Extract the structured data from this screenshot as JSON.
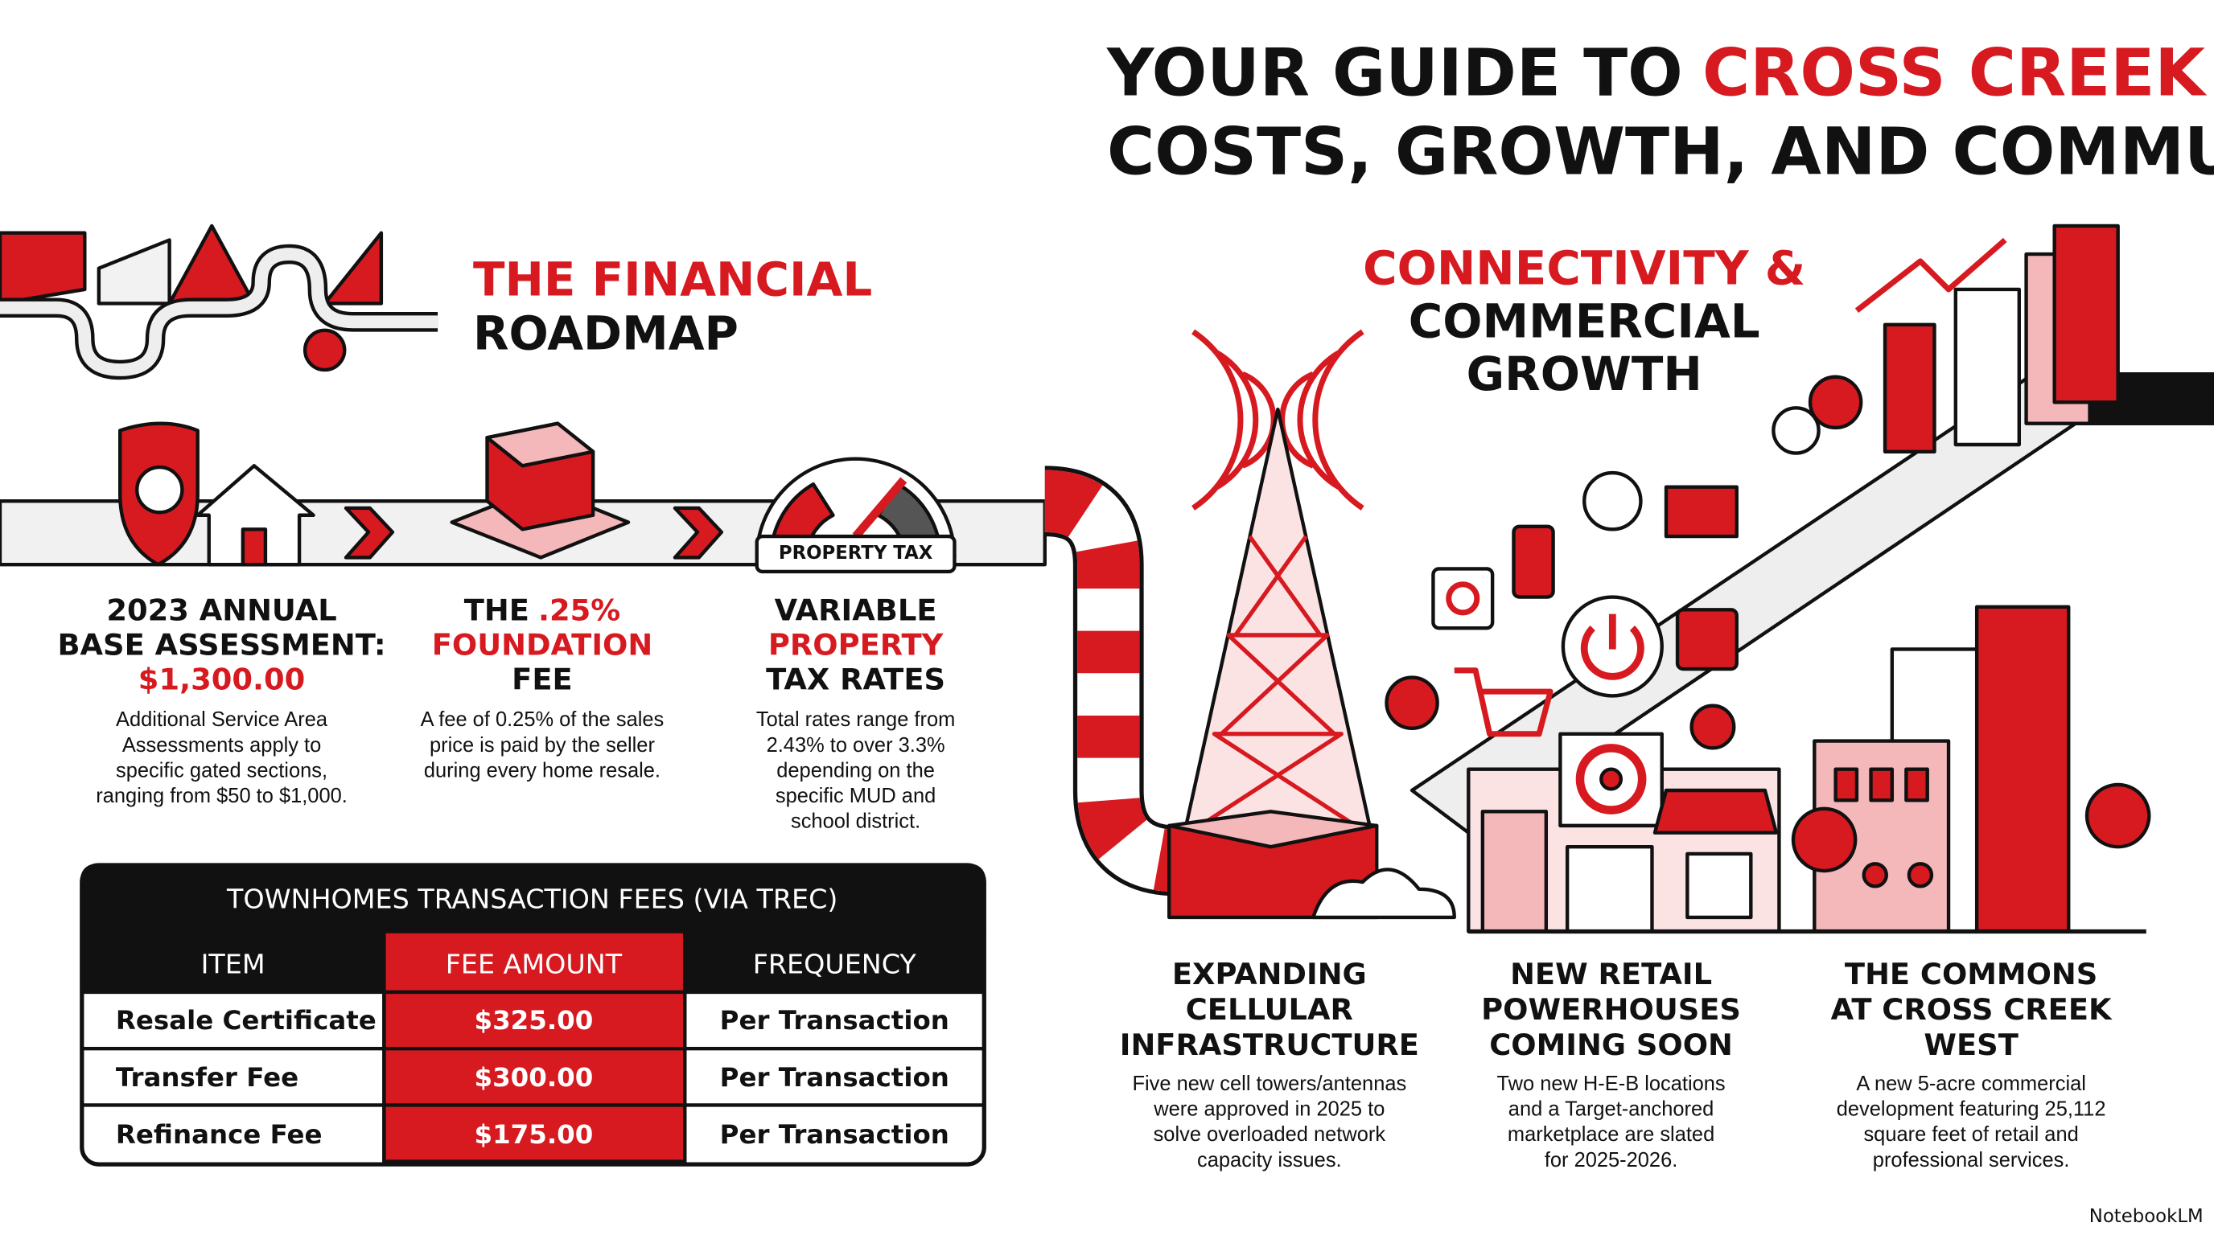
{
  "header": {
    "title_lines": [
      [
        {
          "text": "YOUR GUIDE TO"
        },
        {
          "text": "CROSS CREEK RANCH",
          "accent": true
        },
        {
          "text": ":",
          "join": true
        }
      ],
      [
        {
          "text": "COSTS, GROWTH, AND COMMUNITY"
        }
      ]
    ]
  },
  "financial": {
    "heading_lines": [
      [
        {
          "text": "THE FINANCIAL",
          "accent": true
        }
      ],
      [
        {
          "text": "ROADMAP"
        }
      ]
    ],
    "gauge_label": "PROPERTY TAX",
    "cards": [
      {
        "title_lines": [
          [
            {
              "text": "2023 ANNUAL"
            }
          ],
          [
            {
              "text": "BASE ASSESSMENT:"
            }
          ],
          [
            {
              "text": "$1,300.00",
              "accent": true
            }
          ]
        ],
        "body_lines": [
          "Additional Service Area",
          "Assessments apply to",
          "specific gated sections,",
          "ranging from $50 to $1,000."
        ]
      },
      {
        "title_lines": [
          [
            {
              "text": "THE"
            },
            {
              "text": ".25%",
              "accent": true
            }
          ],
          [
            {
              "text": "FOUNDATION",
              "accent": true
            }
          ],
          [
            {
              "text": "FEE"
            }
          ]
        ],
        "body_lines": [
          "A fee of 0.25% of the sales",
          "price is paid by the seller",
          "during every home resale."
        ]
      },
      {
        "title_lines": [
          [
            {
              "text": "VARIABLE"
            }
          ],
          [
            {
              "text": "PROPERTY",
              "accent": true
            }
          ],
          [
            {
              "text": "TAX RATES"
            }
          ]
        ],
        "body_lines": [
          "Total rates range from",
          "2.43% to over 3.3%",
          "depending on the",
          "specific MUD and",
          "school district."
        ]
      }
    ]
  },
  "table": {
    "title": "TOWNHOMES TRANSACTION FEES (VIA TREC)",
    "columns": [
      "ITEM",
      "FEE AMOUNT",
      "FREQUENCY"
    ],
    "rows": [
      [
        "Resale Certificate",
        "$325.00",
        "Per Transaction"
      ],
      [
        "Transfer Fee",
        "$300.00",
        "Per Transaction"
      ],
      [
        "Refinance Fee",
        "$175.00",
        "Per Transaction"
      ]
    ]
  },
  "growth": {
    "heading_lines": [
      [
        {
          "text": "CONNECTIVITY &",
          "accent": true
        }
      ],
      [
        {
          "text": "COMMERCIAL"
        }
      ],
      [
        {
          "text": "GROWTH"
        }
      ]
    ],
    "columns": [
      {
        "title_lines": [
          [
            {
              "text": "EXPANDING"
            }
          ],
          [
            {
              "text": "CELLULAR"
            }
          ],
          [
            {
              "text": "INFRASTRUCTURE"
            }
          ]
        ],
        "body_lines": [
          "Five new cell towers/antennas",
          "were approved in 2025 to",
          "solve overloaded network",
          "capacity issues."
        ]
      },
      {
        "title_lines": [
          [
            {
              "text": "NEW RETAIL"
            }
          ],
          [
            {
              "text": "POWERHOUSES"
            }
          ],
          [
            {
              "text": "COMING SOON"
            }
          ]
        ],
        "body_lines": [
          "Two new H-E-B locations",
          "and a Target-anchored",
          "marketplace are slated",
          "for 2025-2026."
        ]
      },
      {
        "title_lines": [
          [
            {
              "text": "THE COMMONS"
            }
          ],
          [
            {
              "text": "AT CROSS CREEK"
            }
          ],
          [
            {
              "text": "WEST"
            }
          ]
        ],
        "body_lines": [
          "A new 5-acre commercial",
          "development featuring 25,112",
          "square feet of retail and",
          "professional services."
        ]
      }
    ]
  },
  "footer": {
    "brand": "NotebookLM"
  }
}
